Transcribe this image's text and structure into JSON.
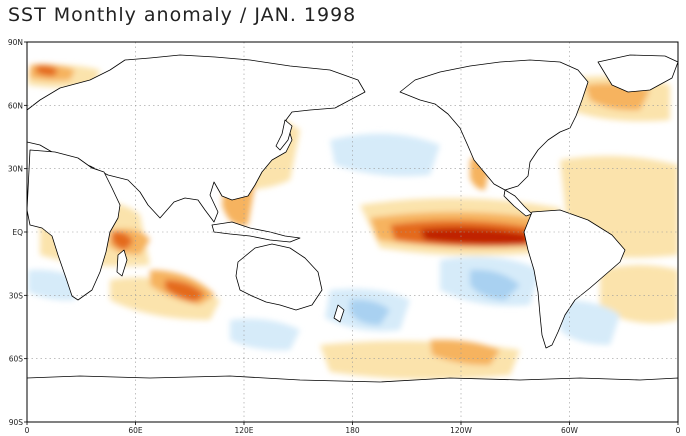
{
  "title": "SST Monthly anomaly / JAN. 1998",
  "map": {
    "lat_labels": [
      "90N",
      "60N",
      "30N",
      "EQ",
      "30S",
      "60S",
      "90S"
    ],
    "lat_values": [
      90,
      60,
      30,
      0,
      -30,
      -60,
      -90
    ],
    "lon_labels": [
      "0",
      "60E",
      "120E",
      "180",
      "120W",
      "60W",
      "0"
    ],
    "lon_values": [
      0,
      60,
      120,
      180,
      240,
      300,
      360
    ],
    "grid": "dotted",
    "colors": {
      "strong_warm": "#c02000",
      "warm": "#e46a1e",
      "mild_warm": "#f6b35e",
      "weak_warm": "#fbe3ac",
      "weak_cool": "#d6ebf9",
      "cool": "#a9d1f1",
      "land_outline": "#000000"
    }
  }
}
